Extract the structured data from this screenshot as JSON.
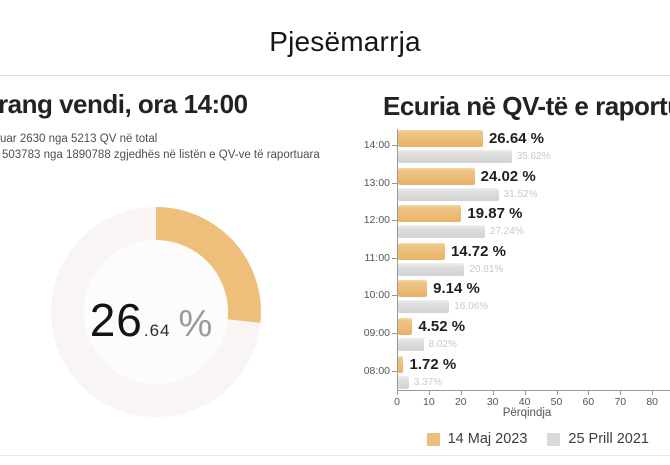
{
  "page": {
    "title": "Pjesëmarrja"
  },
  "left_panel": {
    "title": "rang vendi, ora 14:00",
    "subtitle_line1": "uar 2630 nga 5213 QV në total",
    "subtitle_line2": "503783 nga 1890788 zgjedhës në listën e QV-ve të raportuara",
    "donut": {
      "value_int": "26",
      "value_decimals": ".64",
      "percent_sign": "%"
    }
  },
  "right_panel": {
    "title": "Ecuria në QV-të e raportu"
  },
  "colors": {
    "accent_orange": "#edbf7a",
    "series_gray": "#d9d9d9",
    "donut_track": "#f8f5f4",
    "donut_hole": "#fdfcfc",
    "orange_value_label": "#1f1f1f",
    "gray_value_label": "#c9c9c9",
    "axis": "#999999",
    "tick_text": "#555555"
  },
  "chart_data": [
    {
      "type": "pie",
      "subtype": "donut",
      "title": "rang vendi, ora 14:00",
      "value_percent": 26.64,
      "display_value": "26.64 %",
      "arc_color": "#edbf7a",
      "track_color": "#f8f5f4",
      "start_angle_deg": 0,
      "direction": "clockwise"
    },
    {
      "type": "bar",
      "orientation": "horizontal",
      "title": "Ecuria në QV-të e raportu",
      "categories": [
        "14:00",
        "13:00",
        "12:00",
        "11:00",
        "10:00",
        "09:00",
        "08:00"
      ],
      "series": [
        {
          "name": "14 Maj 2023",
          "color": "#edbf7a",
          "values": [
            26.64,
            24.02,
            19.87,
            14.72,
            9.14,
            4.52,
            1.72
          ]
        },
        {
          "name": "25 Prill 2021",
          "color": "#d9d9d9",
          "values": [
            35.62,
            31.52,
            27.24,
            20.81,
            16.06,
            8.02,
            3.37
          ]
        }
      ],
      "xlabel": "Përqindja",
      "xlim": [
        0,
        85
      ],
      "xticks": [
        0,
        10,
        20,
        30,
        40,
        50,
        60,
        70,
        80
      ],
      "legend_position": "bottom",
      "grid": false
    }
  ]
}
